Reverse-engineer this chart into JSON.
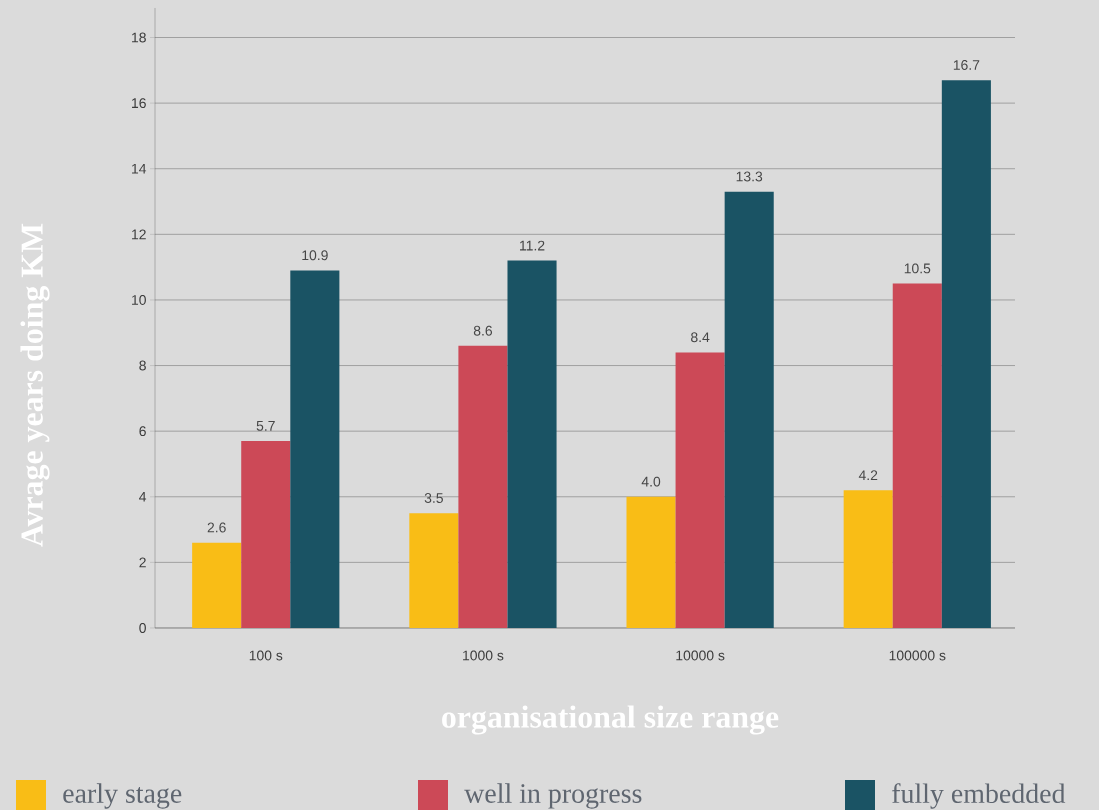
{
  "chart_data": {
    "type": "bar",
    "xlabel": "organisational size range",
    "ylabel": "Avrage years doing KM",
    "categories": [
      "100 s",
      "1000 s",
      "10000 s",
      "100000 s"
    ],
    "series": [
      {
        "name": "early stage",
        "color": "#f9bd16",
        "values": [
          2.6,
          3.5,
          4.0,
          4.2
        ],
        "value_labels": [
          "2.6",
          "3.5",
          "4.0",
          "4.2"
        ]
      },
      {
        "name": "well in progress",
        "color": "#cc4957",
        "values": [
          5.7,
          8.6,
          8.4,
          10.5
        ],
        "value_labels": [
          "5.7",
          "8.6",
          "8.4",
          "10.5"
        ]
      },
      {
        "name": "fully embedded",
        "color": "#1a5364",
        "values": [
          10.9,
          11.2,
          13.3,
          16.7
        ],
        "value_labels": [
          "10.9",
          "11.2",
          "13.3",
          "16.7"
        ]
      }
    ],
    "ylim": [
      0,
      18.9
    ],
    "yticks": [
      0,
      2,
      4,
      6,
      8,
      10,
      12,
      14,
      16,
      18
    ],
    "grid": "y",
    "legend": "bottom"
  }
}
